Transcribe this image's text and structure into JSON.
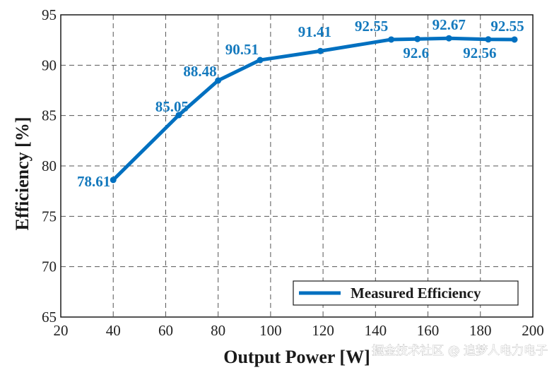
{
  "chart_data": {
    "type": "line",
    "xlabel": "Output Power [W]",
    "ylabel": "Efficiency [%]",
    "xlim": [
      20,
      200
    ],
    "ylim": [
      65,
      95
    ],
    "xticks": [
      20,
      40,
      60,
      80,
      100,
      120,
      140,
      160,
      180,
      200
    ],
    "yticks": [
      65,
      70,
      75,
      80,
      85,
      90,
      95
    ],
    "grid": true,
    "legend_position": "bottom-right",
    "series": [
      {
        "name": "Measured Efficiency",
        "color": "#0070c0",
        "x": [
          40,
          65,
          80,
          96,
          119,
          146,
          156,
          168,
          183,
          193
        ],
        "values": [
          78.61,
          85.05,
          88.48,
          90.51,
          91.41,
          92.55,
          92.6,
          92.67,
          92.56,
          92.55
        ],
        "labels": [
          "78.61",
          "85.05",
          "88.48",
          "90.51",
          "91.41",
          "92.55",
          "92.6",
          "92.67",
          "92.56",
          "92.55"
        ]
      }
    ]
  },
  "watermark": "掘金技术社区 @ 追梦人电力电子"
}
